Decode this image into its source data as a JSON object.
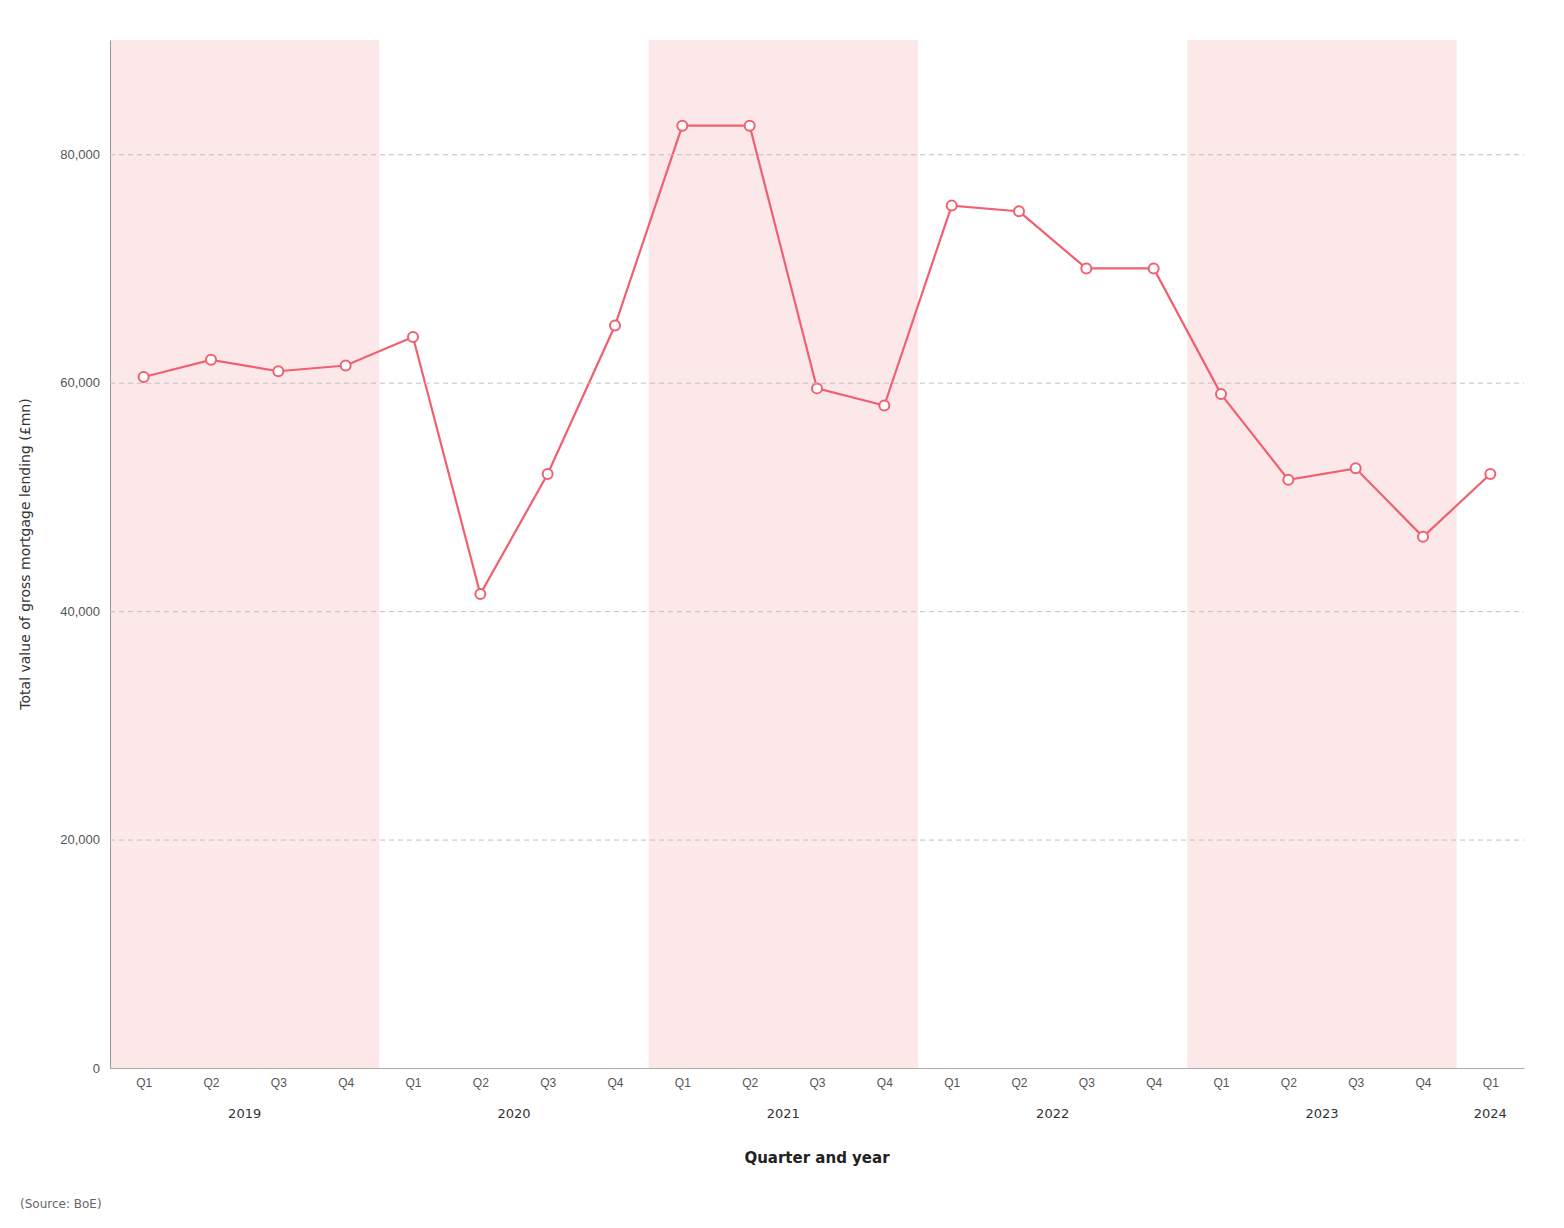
{
  "chart_data": {
    "type": "line",
    "categories": [
      "Q1",
      "Q2",
      "Q3",
      "Q4",
      "Q1",
      "Q2",
      "Q3",
      "Q4",
      "Q1",
      "Q2",
      "Q3",
      "Q4",
      "Q1",
      "Q2",
      "Q3",
      "Q4",
      "Q1",
      "Q2",
      "Q3",
      "Q4",
      "Q1"
    ],
    "groups": [
      2019,
      2019,
      2019,
      2019,
      2020,
      2020,
      2020,
      2020,
      2021,
      2021,
      2021,
      2021,
      2022,
      2022,
      2022,
      2022,
      2023,
      2023,
      2023,
      2023,
      2024
    ],
    "shaded_groups": [
      2019,
      2021,
      2023
    ],
    "band_color": "#fce8e8",
    "values": [
      60500,
      62000,
      61000,
      61500,
      64000,
      41500,
      52000,
      65000,
      82500,
      82500,
      59500,
      58000,
      75500,
      75000,
      70000,
      70000,
      59000,
      51500,
      52500,
      46500,
      52000
    ],
    "color": "#f06070",
    "marker": "circle",
    "line_style": "solid",
    "xlabel": "Quarter and year",
    "ylabel": "Total value of gross mortgage lending (£mn)",
    "annotations": [
      "(Source: BoE)"
    ],
    "ylim": [
      0,
      90000
    ],
    "yticks": [
      0,
      {
        "value": 20000,
        "label": "20,000"
      },
      {
        "value": 40000,
        "label": "40,000"
      },
      {
        "value": 60000,
        "label": "60,000"
      },
      {
        "value": 80000,
        "label": "80,000"
      }
    ],
    "grid": true
  }
}
